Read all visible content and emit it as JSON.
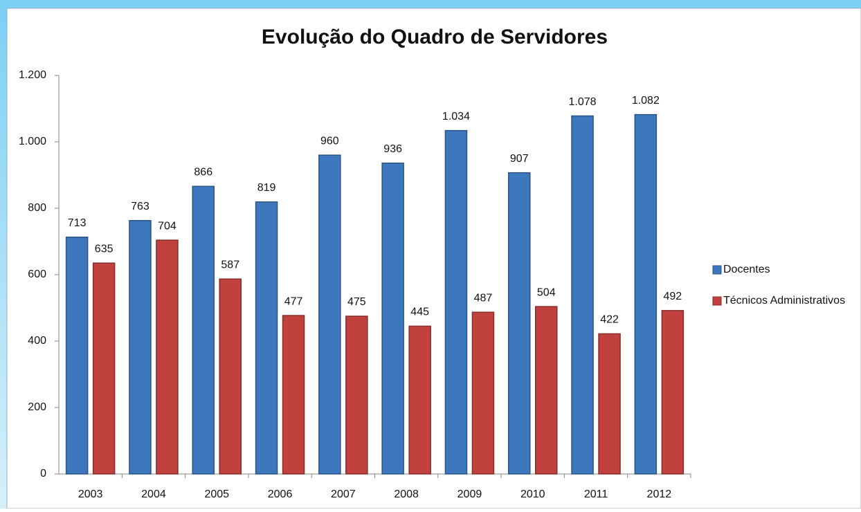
{
  "chart_data": {
    "type": "bar",
    "title": "Evolução do Quadro de Servidores",
    "categories": [
      "2003",
      "2004",
      "2005",
      "2006",
      "2007",
      "2008",
      "2009",
      "2010",
      "2011",
      "2012"
    ],
    "series": [
      {
        "name": "Docentes",
        "color": "#3d78be",
        "values": [
          713,
          763,
          866,
          819,
          960,
          936,
          1034,
          907,
          1078,
          1082
        ],
        "value_labels": [
          "713",
          "763",
          "866",
          "819",
          "960",
          "936",
          "1.034",
          "907",
          "1.078",
          "1.082"
        ]
      },
      {
        "name": "Técnicos Administrativos",
        "color": "#c0413e",
        "values": [
          635,
          704,
          587,
          477,
          475,
          445,
          487,
          504,
          422,
          492
        ]
      }
    ],
    "ylim": [
      0,
      1200
    ],
    "yticks": [
      0,
      200,
      400,
      600,
      800,
      {
        "value": 1000,
        "label": "1.000"
      },
      {
        "value": 1200,
        "label": "1.200"
      }
    ],
    "grid": false,
    "legend": "right"
  }
}
